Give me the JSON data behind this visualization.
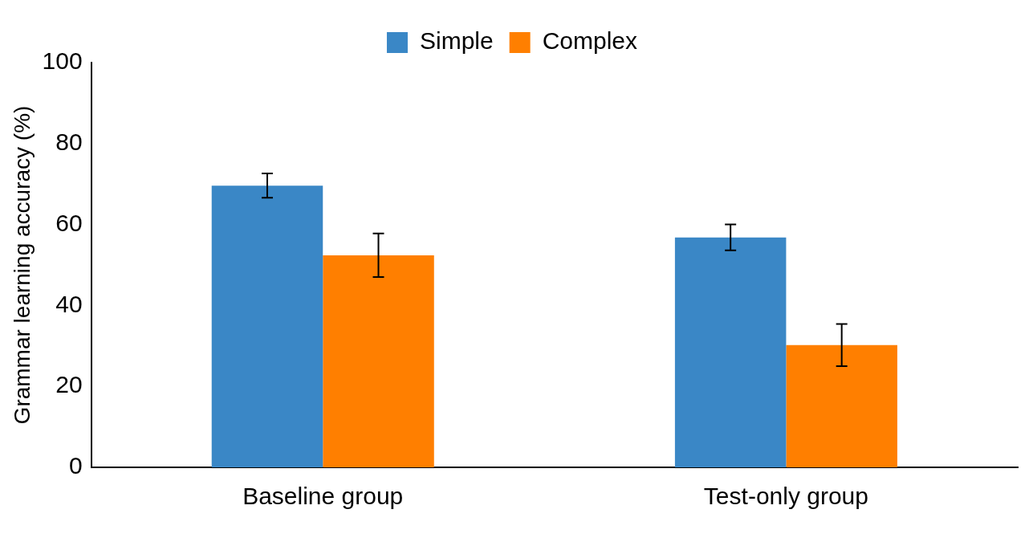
{
  "chart_data": {
    "type": "bar",
    "ylabel": "Grammar learning accuracy (%)",
    "categories": [
      "Baseline group",
      "Test-only group"
    ],
    "series": [
      {
        "name": "Simple",
        "color": "#3a87c6",
        "values": [
          69.6,
          56.8
        ],
        "errors": [
          3,
          3.2
        ]
      },
      {
        "name": "Complex",
        "color": "#ff7f00",
        "values": [
          52.4,
          30.2
        ],
        "errors": [
          5.4,
          5.2
        ]
      }
    ],
    "ylim": [
      0,
      100
    ],
    "yticks": [
      0,
      20,
      40,
      60,
      80,
      100
    ],
    "grid": false,
    "legend": "top"
  }
}
